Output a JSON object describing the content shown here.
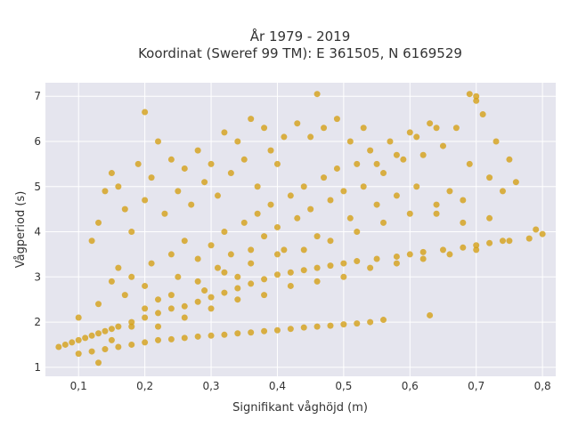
{
  "chart_data": {
    "type": "scatter",
    "title": "År 1979 - 2019",
    "subtitle": "Koordinat (Sweref 99 TM): E 361505, N 6169529",
    "xlabel": "Signifikant våghöjd (m)",
    "ylabel": "Vågperiod (s)",
    "xlim": [
      0.05,
      0.82
    ],
    "ylim": [
      0.8,
      7.3
    ],
    "x_ticks": [
      0.1,
      0.2,
      0.3,
      0.4,
      0.5,
      0.6,
      0.7,
      0.8
    ],
    "x_tick_labels": [
      "0,1",
      "0,2",
      "0,3",
      "0,4",
      "0,5",
      "0,6",
      "0,7",
      "0,8"
    ],
    "y_ticks": [
      1,
      2,
      3,
      4,
      5,
      6,
      7
    ],
    "y_tick_labels": [
      "1",
      "2",
      "3",
      "4",
      "5",
      "6",
      "7"
    ],
    "grid": true,
    "marker_color": "#D4A017",
    "plot_bg": "#E5E5EE",
    "series": [
      {
        "points": [
          [
            0.07,
            1.45
          ],
          [
            0.08,
            1.5
          ],
          [
            0.09,
            1.55
          ],
          [
            0.1,
            1.6
          ],
          [
            0.11,
            1.65
          ],
          [
            0.12,
            1.7
          ],
          [
            0.13,
            1.75
          ],
          [
            0.14,
            1.8
          ],
          [
            0.15,
            1.85
          ],
          [
            0.16,
            1.9
          ],
          [
            0.18,
            2.0
          ],
          [
            0.2,
            2.1
          ],
          [
            0.22,
            2.2
          ],
          [
            0.24,
            2.3
          ],
          [
            0.26,
            2.35
          ],
          [
            0.28,
            2.45
          ],
          [
            0.3,
            2.55
          ],
          [
            0.32,
            2.65
          ],
          [
            0.34,
            2.75
          ],
          [
            0.36,
            2.85
          ],
          [
            0.38,
            2.95
          ],
          [
            0.4,
            3.05
          ],
          [
            0.42,
            3.1
          ],
          [
            0.44,
            3.15
          ],
          [
            0.46,
            3.2
          ],
          [
            0.48,
            3.25
          ],
          [
            0.5,
            3.3
          ],
          [
            0.52,
            3.35
          ],
          [
            0.55,
            3.4
          ],
          [
            0.58,
            3.45
          ],
          [
            0.6,
            3.5
          ],
          [
            0.62,
            3.55
          ],
          [
            0.65,
            3.6
          ],
          [
            0.68,
            3.65
          ],
          [
            0.7,
            3.7
          ],
          [
            0.72,
            3.75
          ],
          [
            0.75,
            3.8
          ],
          [
            0.78,
            3.85
          ],
          [
            0.8,
            3.95
          ],
          [
            0.79,
            4.05
          ],
          [
            0.1,
            1.3
          ],
          [
            0.12,
            1.35
          ],
          [
            0.14,
            1.4
          ],
          [
            0.16,
            1.45
          ],
          [
            0.18,
            1.5
          ],
          [
            0.2,
            1.55
          ],
          [
            0.22,
            1.6
          ],
          [
            0.24,
            1.62
          ],
          [
            0.26,
            1.65
          ],
          [
            0.28,
            1.68
          ],
          [
            0.3,
            1.7
          ],
          [
            0.32,
            1.72
          ],
          [
            0.34,
            1.75
          ],
          [
            0.36,
            1.77
          ],
          [
            0.38,
            1.8
          ],
          [
            0.4,
            1.82
          ],
          [
            0.42,
            1.85
          ],
          [
            0.44,
            1.88
          ],
          [
            0.46,
            1.9
          ],
          [
            0.48,
            1.92
          ],
          [
            0.5,
            1.95
          ],
          [
            0.52,
            1.97
          ],
          [
            0.54,
            2.0
          ],
          [
            0.56,
            2.05
          ],
          [
            0.63,
            2.15
          ],
          [
            0.13,
            1.1
          ],
          [
            0.1,
            2.1
          ],
          [
            0.13,
            2.4
          ],
          [
            0.15,
            2.9
          ],
          [
            0.16,
            3.2
          ],
          [
            0.17,
            2.6
          ],
          [
            0.18,
            3.0
          ],
          [
            0.2,
            2.8
          ],
          [
            0.21,
            3.3
          ],
          [
            0.22,
            2.5
          ],
          [
            0.24,
            3.5
          ],
          [
            0.25,
            3.0
          ],
          [
            0.26,
            3.8
          ],
          [
            0.28,
            3.4
          ],
          [
            0.29,
            2.7
          ],
          [
            0.3,
            3.7
          ],
          [
            0.31,
            3.2
          ],
          [
            0.32,
            4.0
          ],
          [
            0.33,
            3.5
          ],
          [
            0.34,
            3.0
          ],
          [
            0.35,
            4.2
          ],
          [
            0.36,
            3.6
          ],
          [
            0.37,
            4.4
          ],
          [
            0.38,
            3.9
          ],
          [
            0.39,
            4.6
          ],
          [
            0.4,
            4.1
          ],
          [
            0.41,
            3.6
          ],
          [
            0.42,
            4.8
          ],
          [
            0.43,
            4.3
          ],
          [
            0.44,
            5.0
          ],
          [
            0.45,
            4.5
          ],
          [
            0.46,
            3.9
          ],
          [
            0.47,
            5.2
          ],
          [
            0.48,
            4.7
          ],
          [
            0.49,
            5.4
          ],
          [
            0.5,
            4.9
          ],
          [
            0.51,
            4.3
          ],
          [
            0.52,
            5.5
          ],
          [
            0.53,
            5.0
          ],
          [
            0.54,
            5.8
          ],
          [
            0.55,
            4.6
          ],
          [
            0.56,
            5.3
          ],
          [
            0.57,
            6.0
          ],
          [
            0.58,
            4.8
          ],
          [
            0.59,
            5.6
          ],
          [
            0.6,
            6.2
          ],
          [
            0.61,
            5.0
          ],
          [
            0.62,
            5.7
          ],
          [
            0.63,
            6.4
          ],
          [
            0.64,
            4.4
          ],
          [
            0.65,
            5.9
          ],
          [
            0.66,
            4.9
          ],
          [
            0.67,
            6.3
          ],
          [
            0.68,
            4.2
          ],
          [
            0.69,
            5.5
          ],
          [
            0.7,
            6.9
          ],
          [
            0.71,
            6.6
          ],
          [
            0.72,
            5.2
          ],
          [
            0.73,
            6.0
          ],
          [
            0.74,
            4.9
          ],
          [
            0.75,
            5.6
          ],
          [
            0.76,
            5.1
          ],
          [
            0.7,
            7.0
          ],
          [
            0.69,
            7.05
          ],
          [
            0.46,
            7.05
          ],
          [
            0.2,
            6.65
          ],
          [
            0.12,
            3.8
          ],
          [
            0.13,
            4.2
          ],
          [
            0.14,
            4.9
          ],
          [
            0.15,
            5.3
          ],
          [
            0.16,
            5.0
          ],
          [
            0.17,
            4.5
          ],
          [
            0.18,
            4.0
          ],
          [
            0.19,
            5.5
          ],
          [
            0.2,
            4.7
          ],
          [
            0.21,
            5.2
          ],
          [
            0.22,
            6.0
          ],
          [
            0.23,
            4.4
          ],
          [
            0.24,
            5.6
          ],
          [
            0.25,
            4.9
          ],
          [
            0.26,
            5.4
          ],
          [
            0.27,
            4.6
          ],
          [
            0.28,
            5.8
          ],
          [
            0.29,
            5.1
          ],
          [
            0.3,
            5.5
          ],
          [
            0.31,
            4.8
          ],
          [
            0.32,
            6.2
          ],
          [
            0.33,
            5.3
          ],
          [
            0.34,
            6.0
          ],
          [
            0.35,
            5.6
          ],
          [
            0.36,
            6.5
          ],
          [
            0.37,
            5.0
          ],
          [
            0.38,
            6.3
          ],
          [
            0.39,
            5.8
          ],
          [
            0.4,
            5.5
          ],
          [
            0.41,
            6.1
          ],
          [
            0.43,
            6.4
          ],
          [
            0.45,
            6.1
          ],
          [
            0.47,
            6.3
          ],
          [
            0.49,
            6.5
          ],
          [
            0.51,
            6.0
          ],
          [
            0.53,
            6.3
          ],
          [
            0.55,
            5.5
          ],
          [
            0.58,
            5.7
          ],
          [
            0.61,
            6.1
          ],
          [
            0.64,
            6.3
          ],
          [
            0.15,
            1.6
          ],
          [
            0.18,
            1.9
          ],
          [
            0.2,
            2.3
          ],
          [
            0.22,
            1.9
          ],
          [
            0.24,
            2.6
          ],
          [
            0.26,
            2.1
          ],
          [
            0.28,
            2.9
          ],
          [
            0.3,
            2.3
          ],
          [
            0.32,
            3.1
          ],
          [
            0.34,
            2.5
          ],
          [
            0.36,
            3.3
          ],
          [
            0.38,
            2.6
          ],
          [
            0.4,
            3.5
          ],
          [
            0.42,
            2.8
          ],
          [
            0.44,
            3.6
          ],
          [
            0.46,
            2.9
          ],
          [
            0.48,
            3.8
          ],
          [
            0.5,
            3.0
          ],
          [
            0.52,
            4.0
          ],
          [
            0.54,
            3.2
          ],
          [
            0.56,
            4.2
          ],
          [
            0.58,
            3.3
          ],
          [
            0.6,
            4.4
          ],
          [
            0.62,
            3.4
          ],
          [
            0.64,
            4.6
          ],
          [
            0.66,
            3.5
          ],
          [
            0.68,
            4.7
          ],
          [
            0.7,
            3.6
          ],
          [
            0.72,
            4.3
          ],
          [
            0.74,
            3.8
          ]
        ]
      }
    ]
  }
}
